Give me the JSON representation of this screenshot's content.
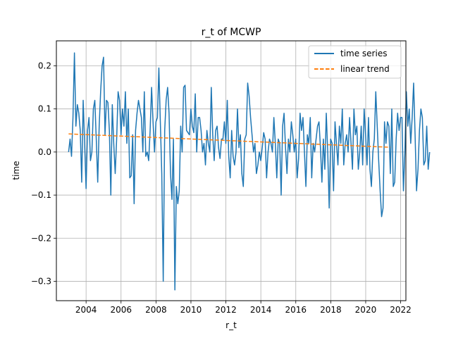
{
  "chart_data": {
    "type": "line",
    "title": "r_t of MCWP",
    "xlabel": "r_t",
    "ylabel": "time",
    "xlim": [
      2002.3,
      2022.3
    ],
    "ylim": [
      -0.345,
      0.258
    ],
    "xticks": [
      2004,
      2006,
      2008,
      2010,
      2012,
      2014,
      2016,
      2018,
      2020,
      2022
    ],
    "xtick_labels": [
      "2004",
      "2006",
      "2008",
      "2010",
      "2012",
      "2014",
      "2016",
      "2018",
      "2020",
      "2022"
    ],
    "yticks": [
      -0.3,
      -0.2,
      -0.1,
      0.0,
      0.1,
      0.2
    ],
    "ytick_labels": [
      "−0.3",
      "−0.2",
      "−0.1",
      "0.0",
      "0.1",
      "0.2"
    ],
    "grid": true,
    "legend_position": "top-right",
    "colors": {
      "series": "#1f77b4",
      "trend": "#ff7f0e"
    },
    "series": [
      {
        "name": "time series",
        "style": "solid",
        "x_start": 2003.0,
        "x_step": 0.0833,
        "values": [
          0.0,
          0.03,
          -0.01,
          0.08,
          0.23,
          0.06,
          0.11,
          0.09,
          0.05,
          -0.07,
          0.12,
          0.02,
          -0.085,
          0.05,
          0.08,
          -0.02,
          0.0,
          0.1,
          0.12,
          0.03,
          -0.07,
          0.06,
          0.14,
          0.2,
          0.22,
          0.04,
          0.12,
          0.115,
          0.05,
          -0.1,
          0.11,
          0.02,
          -0.05,
          0.03,
          0.14,
          0.12,
          0.04,
          0.1,
          0.06,
          0.14,
          0.02,
          0.1,
          -0.06,
          -0.055,
          0.04,
          -0.12,
          0.05,
          0.09,
          0.12,
          0.1,
          0.08,
          0.0,
          0.14,
          -0.01,
          0.0,
          -0.02,
          0.05,
          0.15,
          0.07,
          0.0,
          0.07,
          0.08,
          0.195,
          0.07,
          -0.05,
          -0.3,
          0.05,
          0.12,
          0.15,
          0.09,
          -0.05,
          -0.11,
          0.03,
          -0.32,
          -0.08,
          -0.12,
          -0.09,
          0.06,
          0.0,
          0.15,
          0.155,
          0.05,
          0.045,
          0.04,
          0.1,
          0.06,
          0.045,
          0.135,
          0.0,
          0.08,
          0.08,
          0.05,
          0.0,
          0.02,
          -0.03,
          0.05,
          0.02,
          0.0,
          0.15,
          0.04,
          -0.02,
          0.05,
          0.06,
          0.01,
          -0.015,
          0.03,
          0.03,
          0.07,
          0.02,
          0.12,
          -0.01,
          -0.06,
          0.05,
          -0.01,
          -0.03,
          0.0,
          0.1,
          0.01,
          0.04,
          -0.05,
          -0.08,
          0.03,
          0.04,
          0.16,
          0.13,
          0.08,
          0.04,
          0.0,
          0.02,
          -0.05,
          -0.03,
          0.0,
          -0.02,
          0.01,
          0.045,
          0.03,
          -0.06,
          0.0,
          0.03,
          0.02,
          0.0,
          0.08,
          0.02,
          -0.06,
          0.03,
          0.02,
          -0.1,
          0.06,
          0.09,
          0.01,
          -0.05,
          0.03,
          0.0,
          0.07,
          0.04,
          0.0,
          0.03,
          -0.06,
          -0.015,
          0.09,
          0.05,
          0.08,
          0.0,
          -0.08,
          0.04,
          0.02,
          0.08,
          -0.06,
          0.02,
          0.0,
          0.03,
          0.06,
          0.07,
          0.01,
          -0.07,
          0.03,
          -0.04,
          0.09,
          0.0,
          -0.13,
          0.03,
          0.02,
          -0.09,
          0.07,
          0.02,
          -0.03,
          0.06,
          0.02,
          0.1,
          -0.03,
          0.02,
          0.04,
          0.0,
          0.08,
          0.02,
          -0.04,
          0.1,
          0.04,
          0.06,
          -0.04,
          0.0,
          0.06,
          -0.03,
          0.1,
          0.04,
          -0.03,
          0.08,
          -0.04,
          -0.08,
          0.0,
          0.03,
          0.14,
          0.06,
          -0.02,
          -0.09,
          -0.15,
          -0.13,
          0.07,
          0.02,
          0.07,
          0.06,
          -0.05,
          0.1,
          -0.08,
          -0.07,
          0.03,
          0.09,
          0.05,
          0.08,
          0.08,
          -0.09,
          0.0,
          0.14,
          0.06,
          0.1,
          0.02,
          0.08,
          0.16,
          0.04,
          -0.09,
          -0.04,
          0.05,
          0.1,
          0.08,
          -0.03,
          -0.02,
          0.06,
          -0.04,
          0.0
        ]
      },
      {
        "name": "linear trend",
        "style": "dashed",
        "x": [
          2003.0,
          2021.4
        ],
        "values": [
          0.042,
          0.011
        ]
      }
    ]
  }
}
